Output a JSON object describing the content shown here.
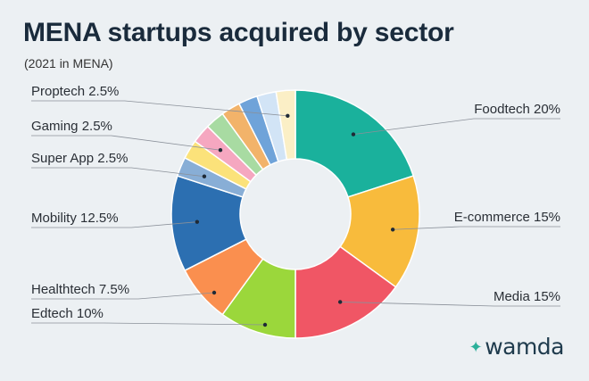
{
  "header": {
    "title": "MENA startups acquired by sector",
    "subtitle": "(2021 in MENA)"
  },
  "brand": {
    "name": "wamda"
  },
  "chart_data": {
    "type": "pie",
    "variant": "donut",
    "title": "MENA startups acquired by sector",
    "subtitle": "(2021 in MENA)",
    "slices": [
      {
        "label": "Foodtech 20%",
        "value": 20,
        "color": "#1ab19c"
      },
      {
        "label": "E-commerce 15%",
        "value": 15,
        "color": "#f8bb3c"
      },
      {
        "label": "Media 15%",
        "value": 15,
        "color": "#f05665"
      },
      {
        "label": "Edtech 10%",
        "value": 10,
        "color": "#9bd73b"
      },
      {
        "label": "Healthtech 7.5%",
        "value": 7.5,
        "color": "#fa8f4f"
      },
      {
        "label": "Mobility 12.5%",
        "value": 12.5,
        "color": "#2c6fb1"
      },
      {
        "label": "Super App 2.5%",
        "value": 2.5,
        "color": "#88aed6"
      },
      {
        "label": "",
        "value": 2.5,
        "color": "#fbe27a"
      },
      {
        "label": "Gaming 2.5%",
        "value": 2.5,
        "color": "#f5a7c0"
      },
      {
        "label": "",
        "value": 2.5,
        "color": "#a8dba2"
      },
      {
        "label": "",
        "value": 2.5,
        "color": "#f2b36a"
      },
      {
        "label": "",
        "value": 2.5,
        "color": "#6fa3d9"
      },
      {
        "label": "",
        "value": 2.5,
        "color": "#d2e4f6"
      },
      {
        "label": "Proptech 2.5%",
        "value": 2.5,
        "color": "#fbefc6"
      }
    ]
  }
}
